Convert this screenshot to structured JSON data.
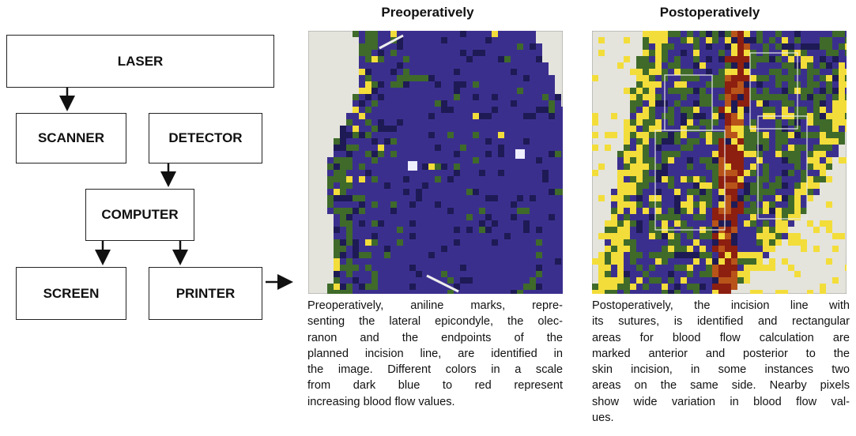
{
  "diagram": {
    "nodes": [
      {
        "label": "LASER"
      },
      {
        "label": "SCANNER"
      },
      {
        "label": "DETECTOR"
      },
      {
        "label": "COMPUTER"
      },
      {
        "label": "SCREEN"
      },
      {
        "label": "PRINTER"
      }
    ]
  },
  "panels": [
    {
      "title": "Preoperatively",
      "caption": [
        "Preoperatively, aniline marks, repre-",
        "senting the lateral epicondyle, the olec-",
        "ranon and the endpoints of the",
        "planned incision line, are identified in",
        "the image. Different colors in a scale",
        "from dark blue to red represent",
        "increasing blood flow values."
      ]
    },
    {
      "title": "Postoperatively",
      "caption": [
        "Postoperatively, the incision line with",
        "its sutures, is identified and rectangular",
        "areas for blood flow calculation are",
        "marked anterior and posterior to the",
        "skin incision, in some instances two",
        "areas on the same side. Nearby pixels",
        "show wide variation in blood flow val-",
        "ues."
      ]
    }
  ]
}
